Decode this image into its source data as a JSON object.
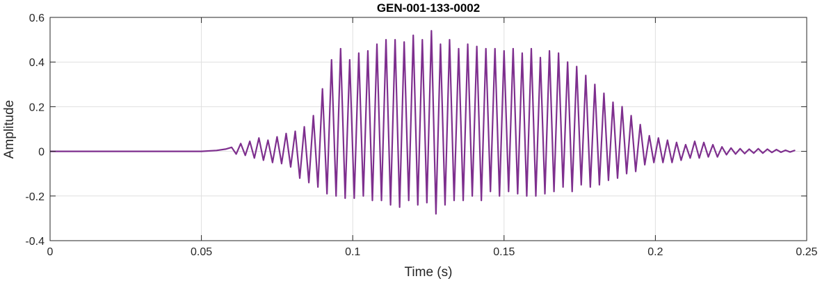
{
  "chart_data": {
    "type": "line",
    "title": "GEN-001-133-0002",
    "xlabel": "Time (s)",
    "ylabel": "Amplitude",
    "xlim": [
      0,
      0.25
    ],
    "ylim": [
      -0.4,
      0.6
    ],
    "xticks": [
      0,
      0.05,
      0.1,
      0.15,
      0.2,
      0.25
    ],
    "xtick_labels": [
      "0",
      "0.05",
      "0.1",
      "0.15",
      "0.2",
      "0.25"
    ],
    "yticks": [
      -0.4,
      -0.2,
      0,
      0.2,
      0.4,
      0.6
    ],
    "ytick_labels": [
      "-0.4",
      "-0.2",
      "0",
      "0.2",
      "0.4",
      "0.6"
    ],
    "grid": true,
    "legend": "none",
    "colors": {
      "line": "#7e2f8e",
      "grid": "#dfdfdf",
      "axes": "#262626",
      "background": "#ffffff"
    },
    "series": [
      {
        "x": [
          0,
          0.01,
          0.02,
          0.03,
          0.04,
          0.05,
          0.055,
          0.058,
          0.06,
          0.0615,
          0.063,
          0.0645,
          0.066,
          0.0675,
          0.069,
          0.0705,
          0.072,
          0.0735,
          0.075,
          0.0765,
          0.078,
          0.0795,
          0.081,
          0.0825,
          0.084,
          0.0855,
          0.087,
          0.0885,
          0.09,
          0.0915,
          0.093,
          0.0945,
          0.096,
          0.0975,
          0.099,
          0.1005,
          0.102,
          0.1035,
          0.105,
          0.1065,
          0.108,
          0.1095,
          0.111,
          0.1125,
          0.114,
          0.1155,
          0.117,
          0.1185,
          0.12,
          0.1215,
          0.123,
          0.1245,
          0.126,
          0.1275,
          0.129,
          0.1305,
          0.132,
          0.1335,
          0.135,
          0.1365,
          0.138,
          0.1395,
          0.141,
          0.1425,
          0.144,
          0.1455,
          0.147,
          0.1485,
          0.15,
          0.1515,
          0.153,
          0.1545,
          0.156,
          0.1575,
          0.159,
          0.1605,
          0.162,
          0.1635,
          0.165,
          0.1665,
          0.168,
          0.1695,
          0.171,
          0.1725,
          0.174,
          0.1755,
          0.177,
          0.1785,
          0.18,
          0.1815,
          0.183,
          0.1845,
          0.186,
          0.1875,
          0.189,
          0.1905,
          0.192,
          0.1935,
          0.195,
          0.1965,
          0.198,
          0.1995,
          0.201,
          0.2025,
          0.204,
          0.2055,
          0.207,
          0.2085,
          0.21,
          0.2115,
          0.213,
          0.2145,
          0.216,
          0.2175,
          0.219,
          0.2205,
          0.222,
          0.2235,
          0.225,
          0.2265,
          0.228,
          0.2295,
          0.231,
          0.2325,
          0.234,
          0.2355,
          0.237,
          0.2385,
          0.24,
          0.2415,
          0.243,
          0.2445,
          0.246
        ],
        "y": [
          0,
          0,
          0,
          0,
          0,
          0,
          0.004,
          0.01,
          0.018,
          -0.012,
          0.035,
          -0.018,
          0.045,
          -0.03,
          0.06,
          -0.04,
          0.05,
          -0.05,
          0.065,
          -0.055,
          0.08,
          -0.07,
          0.09,
          -0.12,
          0.11,
          -0.14,
          0.16,
          -0.16,
          0.28,
          -0.19,
          0.41,
          -0.2,
          0.46,
          -0.21,
          0.41,
          -0.21,
          0.44,
          -0.2,
          0.45,
          -0.22,
          0.48,
          -0.22,
          0.5,
          -0.24,
          0.5,
          -0.25,
          0.49,
          -0.22,
          0.52,
          -0.24,
          0.5,
          -0.23,
          0.54,
          -0.28,
          0.48,
          -0.24,
          0.5,
          -0.22,
          0.46,
          -0.22,
          0.48,
          -0.2,
          0.47,
          -0.22,
          0.46,
          -0.18,
          0.46,
          -0.2,
          0.45,
          -0.18,
          0.46,
          -0.19,
          0.44,
          -0.2,
          0.46,
          -0.2,
          0.42,
          -0.19,
          0.45,
          -0.18,
          0.44,
          -0.16,
          0.4,
          -0.18,
          0.38,
          -0.15,
          0.34,
          -0.16,
          0.3,
          -0.15,
          0.26,
          -0.13,
          0.22,
          -0.12,
          0.2,
          -0.1,
          0.16,
          -0.09,
          0.12,
          -0.06,
          0.07,
          -0.05,
          0.06,
          -0.05,
          0.05,
          -0.05,
          0.04,
          -0.04,
          0.03,
          -0.03,
          0.045,
          -0.03,
          0.04,
          -0.025,
          0.03,
          -0.025,
          0.02,
          -0.015,
          0.015,
          -0.012,
          0.012,
          -0.01,
          0.01,
          -0.008,
          0.012,
          -0.008,
          0.01,
          -0.005,
          0.008,
          -0.004,
          0.005,
          -0.003,
          0.004
        ]
      }
    ]
  }
}
